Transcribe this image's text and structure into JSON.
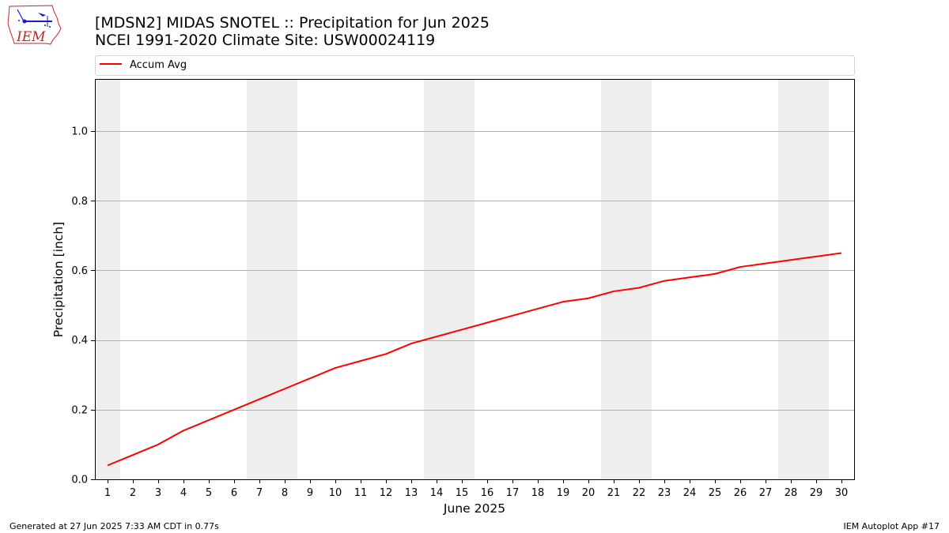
{
  "header": {
    "title_line1": "[MDSN2] MIDAS SNOTEL :: Precipitation for Jun 2025",
    "title_line2": "NCEI 1991-2020 Climate Site: USW00024119"
  },
  "logo": {
    "text": "IEM",
    "icon": "iowa-state-weather-logo-icon"
  },
  "footer": {
    "left": "Generated at 27 Jun 2025 7:33 AM CDT in 0.77s",
    "right": "IEM Autoplot App #17"
  },
  "colors": {
    "series": "#ff0000",
    "weekend_band": "#eeeeee",
    "grid": "#b0b0b0",
    "logo_blue": "#1a1acc",
    "logo_red": "#cc2222"
  },
  "chart_data": {
    "type": "line",
    "xlabel": "June 2025",
    "ylabel": "Precipitation [inch]",
    "xlim": [
      0.5,
      30.5
    ],
    "ylim": [
      0.0,
      1.15
    ],
    "x": [
      1,
      2,
      3,
      4,
      5,
      6,
      7,
      8,
      9,
      10,
      11,
      12,
      13,
      14,
      15,
      16,
      17,
      18,
      19,
      20,
      21,
      22,
      23,
      24,
      25,
      26,
      27,
      28,
      29,
      30
    ],
    "x_tick_labels": [
      "1",
      "2",
      "3",
      "4",
      "5",
      "6",
      "7",
      "8",
      "9",
      "10",
      "11",
      "12",
      "13",
      "14",
      "15",
      "16",
      "17",
      "18",
      "19",
      "20",
      "21",
      "22",
      "23",
      "24",
      "25",
      "26",
      "27",
      "28",
      "29",
      "30"
    ],
    "y_ticks": [
      0.0,
      0.2,
      0.4,
      0.6,
      0.8,
      1.0
    ],
    "y_tick_labels": [
      "0.0",
      "0.2",
      "0.4",
      "0.6",
      "0.8",
      "1.0"
    ],
    "grid": "horizontal",
    "legend_position": "top",
    "weekend_days": [
      1,
      7,
      8,
      14,
      15,
      21,
      22,
      28,
      29
    ],
    "series": [
      {
        "name": "Accum Avg",
        "values": [
          0.04,
          0.07,
          0.1,
          0.14,
          0.17,
          0.2,
          0.23,
          0.26,
          0.29,
          0.32,
          0.34,
          0.36,
          0.39,
          0.41,
          0.43,
          0.45,
          0.47,
          0.49,
          0.51,
          0.52,
          0.54,
          0.55,
          0.57,
          0.58,
          0.59,
          0.61,
          0.62,
          0.63,
          0.64,
          0.65
        ]
      }
    ]
  }
}
